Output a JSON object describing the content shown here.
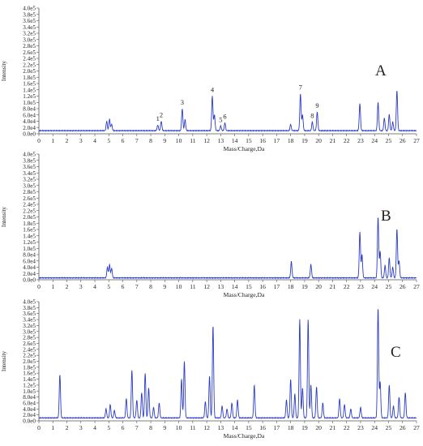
{
  "chart_data": [
    {
      "type": "line",
      "panel_label": "A",
      "xlabel": "Mass/Charge,Da",
      "ylabel": "Intensity",
      "xlim": [
        0,
        27
      ],
      "ylim": [
        0,
        400000
      ],
      "x_ticks": [
        "0",
        "1",
        "2",
        "3",
        "4",
        "5",
        "6",
        "7",
        "8",
        "9",
        "10",
        "11",
        "12",
        "13",
        "14",
        "15",
        "16",
        "17",
        "18",
        "19",
        "20",
        "21",
        "22",
        "23",
        "24",
        "25",
        "26",
        "27"
      ],
      "y_ticks": [
        "0.0e0",
        "2.0e4",
        "4.0e4",
        "6.0e4",
        "8.0e4",
        "1.0e5",
        "1.2e5",
        "1.4e5",
        "1.6e5",
        "1.8e5",
        "2.0e5",
        "2.2e5",
        "2.4e5",
        "2.6e5",
        "2.8e5",
        "3.0e5",
        "3.2e5",
        "3.4e5",
        "3.6e5",
        "3.8e5",
        "4.0e5"
      ],
      "baseline": 10000,
      "peaks": [
        {
          "x": 4.85,
          "y": 40000
        },
        {
          "x": 5.05,
          "y": 46000
        },
        {
          "x": 5.2,
          "y": 30000
        },
        {
          "x": 8.5,
          "y": 28000
        },
        {
          "x": 8.75,
          "y": 40000
        },
        {
          "x": 10.25,
          "y": 80000
        },
        {
          "x": 10.45,
          "y": 45000
        },
        {
          "x": 12.4,
          "y": 120000
        },
        {
          "x": 12.55,
          "y": 60000
        },
        {
          "x": 13.0,
          "y": 25000
        },
        {
          "x": 13.3,
          "y": 35000
        },
        {
          "x": 18.0,
          "y": 30000
        },
        {
          "x": 18.7,
          "y": 128000
        },
        {
          "x": 18.85,
          "y": 60000
        },
        {
          "x": 19.55,
          "y": 38000
        },
        {
          "x": 19.9,
          "y": 70000
        },
        {
          "x": 22.95,
          "y": 96000
        },
        {
          "x": 24.25,
          "y": 100000
        },
        {
          "x": 24.7,
          "y": 50000
        },
        {
          "x": 25.05,
          "y": 62000
        },
        {
          "x": 25.3,
          "y": 38000
        },
        {
          "x": 25.6,
          "y": 138000
        }
      ],
      "annotations": [
        {
          "text": "1",
          "x": 8.5,
          "y": 28000
        },
        {
          "text": "2",
          "x": 8.75,
          "y": 40000
        },
        {
          "text": "3",
          "x": 10.25,
          "y": 80000
        },
        {
          "text": "4",
          "x": 12.4,
          "y": 120000
        },
        {
          "text": "5",
          "x": 13.0,
          "y": 25000
        },
        {
          "text": "6",
          "x": 13.3,
          "y": 35000
        },
        {
          "text": "7",
          "x": 18.7,
          "y": 128000
        },
        {
          "text": "8",
          "x": 19.55,
          "y": 38000
        },
        {
          "text": "9",
          "x": 19.9,
          "y": 70000
        }
      ],
      "line_color": "#2a3cc8"
    },
    {
      "type": "line",
      "panel_label": "B",
      "xlabel": "Mass/Charge,Da",
      "ylabel": "Intensity",
      "xlim": [
        0,
        27
      ],
      "ylim": [
        0,
        400000
      ],
      "x_ticks": [
        "0",
        "1",
        "2",
        "3",
        "4",
        "5",
        "6",
        "7",
        "8",
        "9",
        "10",
        "11",
        "12",
        "13",
        "14",
        "15",
        "16",
        "17",
        "18",
        "19",
        "20",
        "21",
        "22",
        "23",
        "24",
        "25",
        "26",
        "27"
      ],
      "y_ticks": [
        "0.0e0",
        "2.0e4",
        "4.0e4",
        "6.0e4",
        "8.0e4",
        "1.0e5",
        "1.2e5",
        "1.4e5",
        "1.6e5",
        "1.8e5",
        "2.0e5",
        "2.2e5",
        "2.4e5",
        "2.6e5",
        "2.8e5",
        "3.0e5",
        "3.2e5",
        "3.4e5",
        "3.6e5",
        "3.8e5",
        "4.0e5"
      ],
      "baseline": 6000,
      "peaks": [
        {
          "x": 4.9,
          "y": 40000
        },
        {
          "x": 5.05,
          "y": 48000
        },
        {
          "x": 5.2,
          "y": 36000
        },
        {
          "x": 18.05,
          "y": 58000
        },
        {
          "x": 19.45,
          "y": 48000
        },
        {
          "x": 22.95,
          "y": 152000
        },
        {
          "x": 23.1,
          "y": 80000
        },
        {
          "x": 24.25,
          "y": 200000
        },
        {
          "x": 24.4,
          "y": 90000
        },
        {
          "x": 24.75,
          "y": 45000
        },
        {
          "x": 25.05,
          "y": 70000
        },
        {
          "x": 25.3,
          "y": 40000
        },
        {
          "x": 25.6,
          "y": 162000
        },
        {
          "x": 25.75,
          "y": 60000
        }
      ],
      "line_color": "#2a3cc8"
    },
    {
      "type": "line",
      "panel_label": "C",
      "xlabel": "Mass/Charge,Da",
      "ylabel": "Intensity",
      "xlim": [
        0,
        27
      ],
      "ylim": [
        0,
        400000
      ],
      "x_ticks": [
        "0",
        "1",
        "2",
        "3",
        "4",
        "5",
        "6",
        "7",
        "8",
        "9",
        "10",
        "11",
        "12",
        "13",
        "14",
        "15",
        "16",
        "17",
        "18",
        "19",
        "20",
        "21",
        "22",
        "23",
        "24",
        "25",
        "26",
        "27"
      ],
      "y_ticks": [
        "0.0e0",
        "2.0e4",
        "4.0e4",
        "6.0e4",
        "8.0e4",
        "1.0e5",
        "1.2e5",
        "1.4e5",
        "1.6e5",
        "1.8e5",
        "2.0e5",
        "2.2e5",
        "2.4e5",
        "2.6e5",
        "2.8e5",
        "3.0e5",
        "3.2e5",
        "3.4e5",
        "3.6e5",
        "3.8e5",
        "4.0e5"
      ],
      "baseline": 10000,
      "peaks": [
        {
          "x": 1.5,
          "y": 155000
        },
        {
          "x": 4.8,
          "y": 40000
        },
        {
          "x": 5.1,
          "y": 55000
        },
        {
          "x": 5.4,
          "y": 35000
        },
        {
          "x": 6.25,
          "y": 75000
        },
        {
          "x": 6.65,
          "y": 170000
        },
        {
          "x": 7.0,
          "y": 70000
        },
        {
          "x": 7.35,
          "y": 95000
        },
        {
          "x": 7.6,
          "y": 160000
        },
        {
          "x": 7.85,
          "y": 110000
        },
        {
          "x": 8.2,
          "y": 45000
        },
        {
          "x": 8.6,
          "y": 60000
        },
        {
          "x": 10.2,
          "y": 140000
        },
        {
          "x": 10.4,
          "y": 200000
        },
        {
          "x": 11.9,
          "y": 65000
        },
        {
          "x": 12.2,
          "y": 150000
        },
        {
          "x": 12.45,
          "y": 320000
        },
        {
          "x": 13.1,
          "y": 50000
        },
        {
          "x": 13.45,
          "y": 40000
        },
        {
          "x": 13.8,
          "y": 60000
        },
        {
          "x": 14.2,
          "y": 70000
        },
        {
          "x": 15.4,
          "y": 120000
        },
        {
          "x": 17.7,
          "y": 70000
        },
        {
          "x": 18.0,
          "y": 140000
        },
        {
          "x": 18.3,
          "y": 90000
        },
        {
          "x": 18.65,
          "y": 340000
        },
        {
          "x": 18.85,
          "y": 110000
        },
        {
          "x": 19.25,
          "y": 340000
        },
        {
          "x": 19.45,
          "y": 120000
        },
        {
          "x": 19.85,
          "y": 115000
        },
        {
          "x": 20.3,
          "y": 60000
        },
        {
          "x": 21.5,
          "y": 75000
        },
        {
          "x": 21.85,
          "y": 55000
        },
        {
          "x": 22.3,
          "y": 40000
        },
        {
          "x": 23.0,
          "y": 45000
        },
        {
          "x": 24.25,
          "y": 380000
        },
        {
          "x": 24.4,
          "y": 130000
        },
        {
          "x": 25.05,
          "y": 120000
        },
        {
          "x": 25.35,
          "y": 50000
        },
        {
          "x": 25.75,
          "y": 80000
        },
        {
          "x": 26.2,
          "y": 95000
        }
      ],
      "line_color": "#2a3cc8"
    }
  ]
}
